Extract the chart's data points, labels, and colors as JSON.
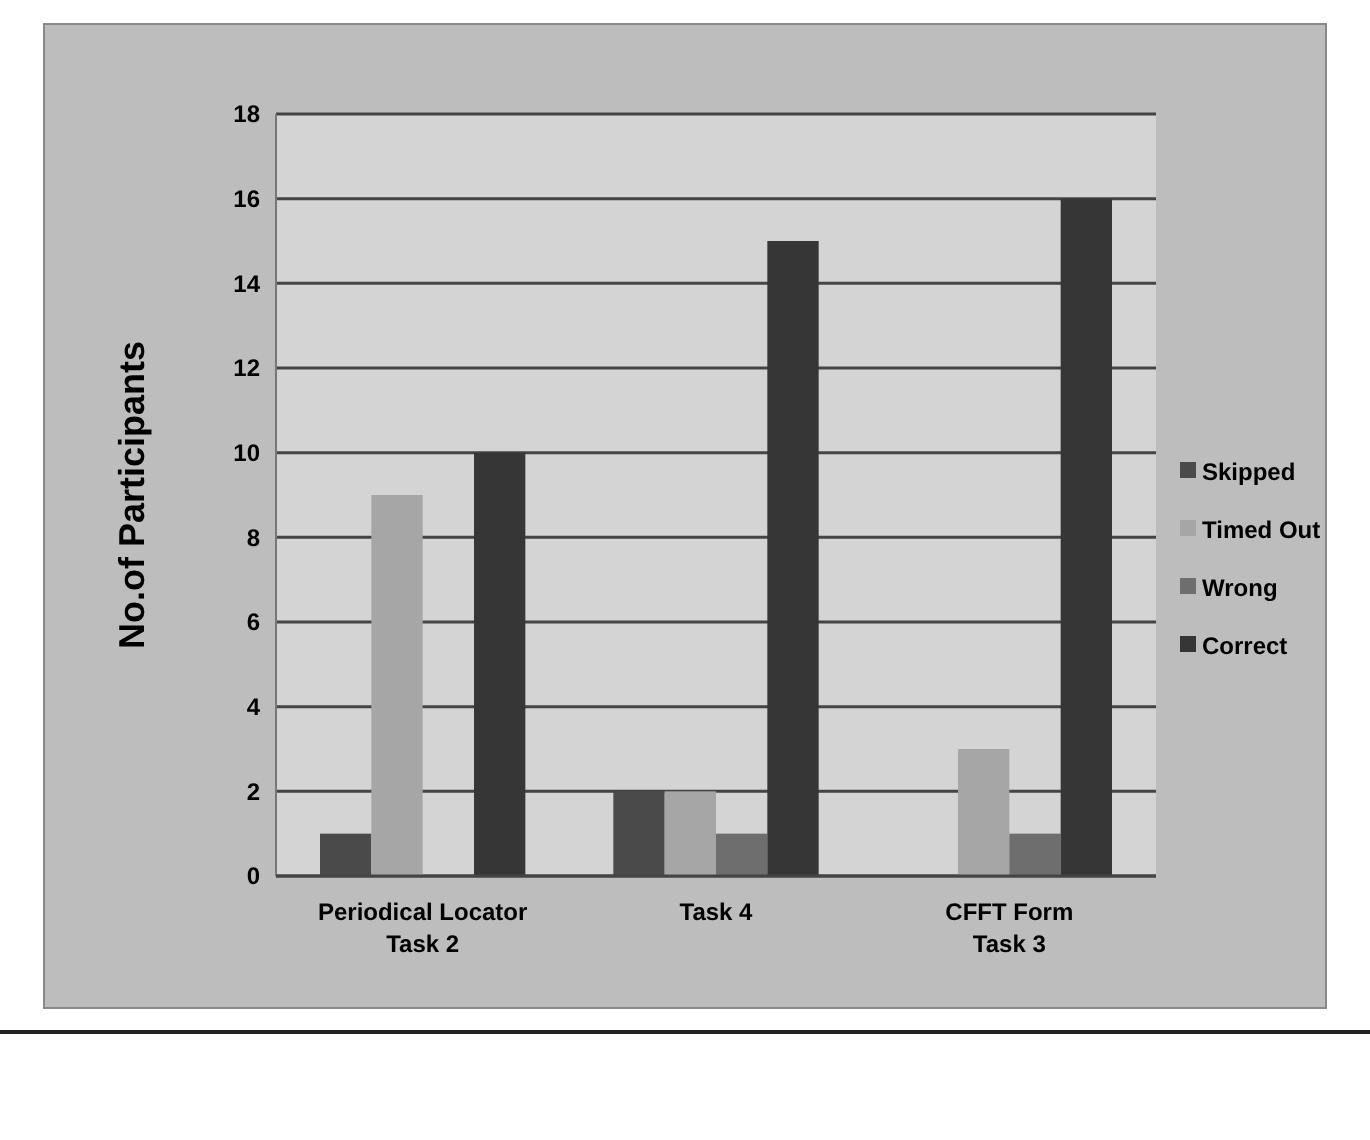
{
  "chart_data": {
    "type": "bar",
    "ylabel": "No.of Participants",
    "categories": [
      "Periodical Locator\nTask 2",
      "Task 4",
      "CFFT Form\nTask 3"
    ],
    "series": [
      {
        "name": "Skipped",
        "color": "#4a4a4a",
        "values": [
          1,
          2,
          0
        ]
      },
      {
        "name": "Timed Out",
        "color": "#a6a6a6",
        "values": [
          9,
          2,
          3
        ]
      },
      {
        "name": "Wrong",
        "color": "#6e6e6e",
        "values": [
          0,
          1,
          1
        ]
      },
      {
        "name": "Correct",
        "color": "#363636",
        "values": [
          10,
          15,
          16
        ]
      }
    ],
    "ylim": [
      0,
      18
    ],
    "yticks": [
      0,
      2,
      4,
      6,
      8,
      10,
      12,
      14,
      16,
      18
    ],
    "grid": "y",
    "legend": "right"
  }
}
